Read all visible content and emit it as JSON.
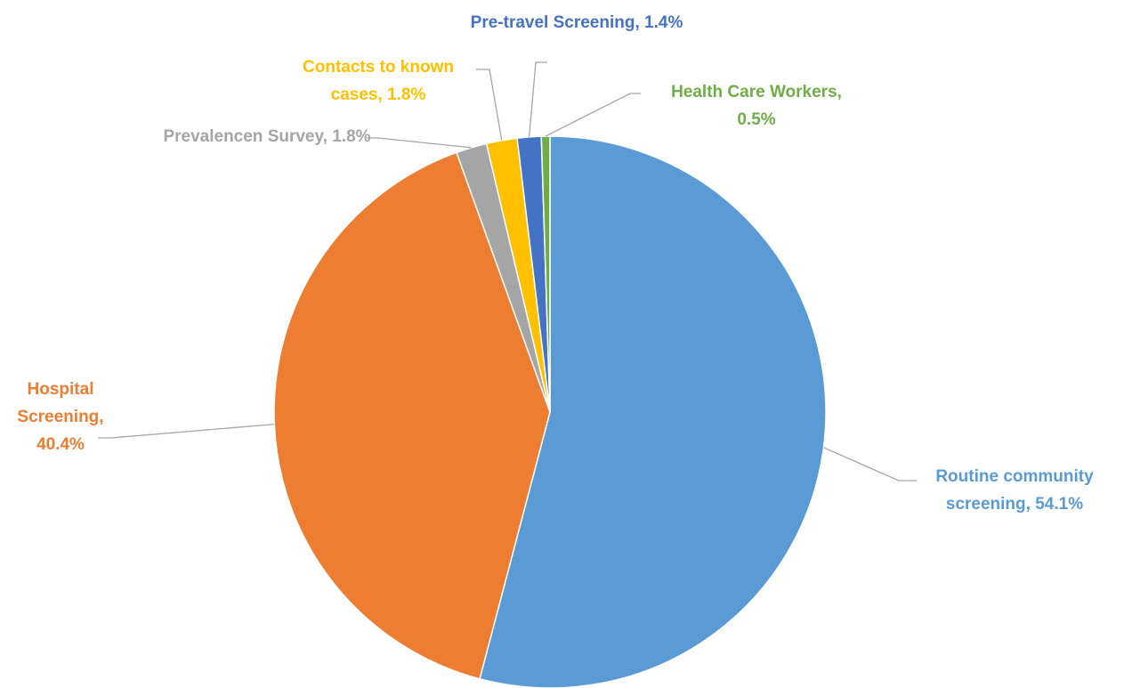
{
  "chart_data": {
    "type": "pie",
    "categories": [
      "Routine community screening",
      "Hospital Screening",
      "Prevalencen Survey",
      "Contacts to known cases",
      "Pre-travel Screening",
      "Health Care Workers"
    ],
    "values": [
      54.1,
      40.4,
      1.8,
      1.8,
      1.4,
      0.5
    ],
    "value_labels": [
      "54.1%",
      "40.4%",
      "1.8%",
      "1.8%",
      "1.4%",
      "0.5%"
    ],
    "separator": ", ",
    "colors": [
      "#5b9bd5",
      "#ed7d31",
      "#a5a5a5",
      "#ffc000",
      "#4472c4",
      "#70ad47"
    ]
  }
}
